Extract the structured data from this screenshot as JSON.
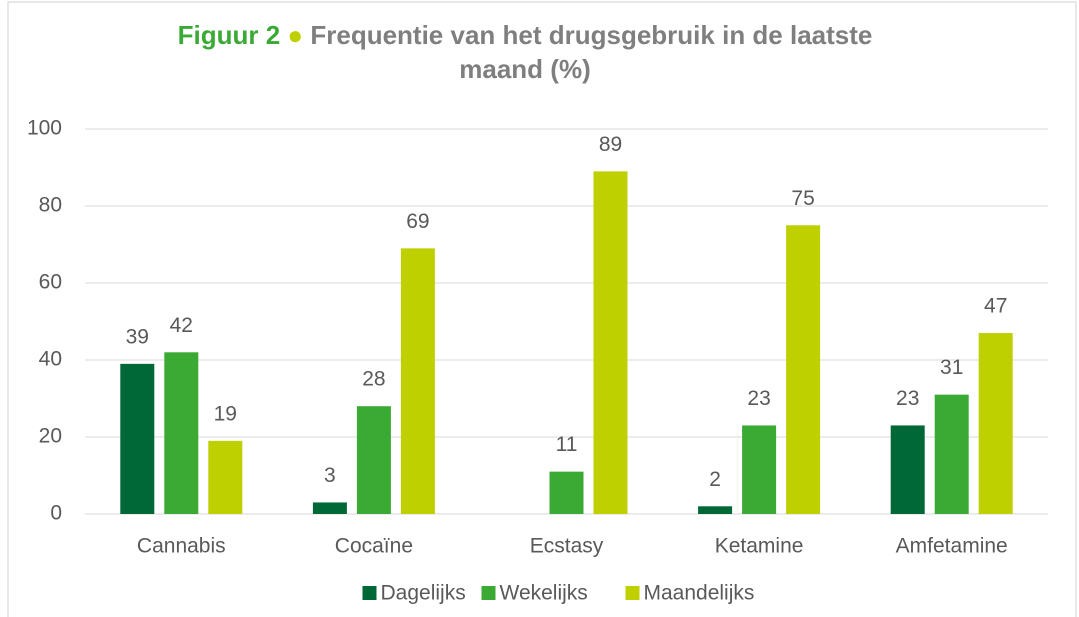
{
  "chart_data": {
    "type": "bar",
    "title_label": "Figuur 2",
    "title": "Frequentie van het drugsgebruik in de laatste maand (%)",
    "categories": [
      "Cannabis",
      "Cocaïne",
      "Ecstasy",
      "Ketamine",
      "Amfetamine"
    ],
    "series": [
      {
        "name": "Dagelijks",
        "color": "#006837",
        "values": [
          39,
          3,
          null,
          2,
          23
        ]
      },
      {
        "name": "Wekelijks",
        "color": "#3aaa35",
        "values": [
          42,
          28,
          11,
          23,
          31
        ]
      },
      {
        "name": "Maandelijks",
        "color": "#bfd000",
        "values": [
          19,
          69,
          89,
          75,
          47
        ]
      }
    ],
    "ylim": [
      0,
      100
    ],
    "yticks": [
      0,
      20,
      40,
      60,
      80,
      100
    ],
    "grid": true,
    "legend": "bottom"
  }
}
